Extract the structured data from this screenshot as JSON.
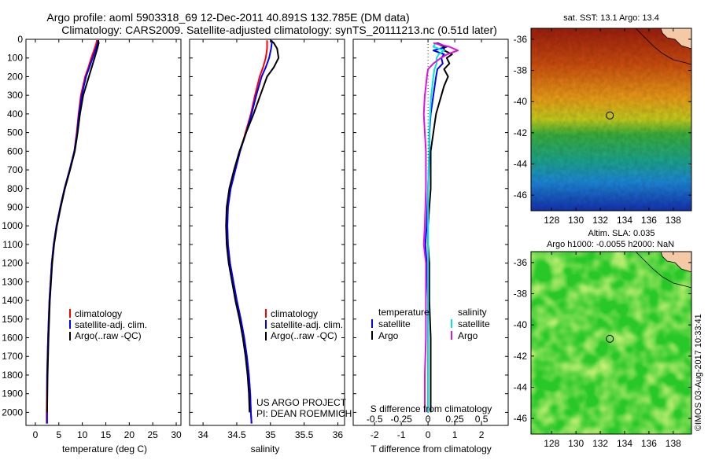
{
  "header": {
    "line1": "Argo profile: aoml 5903318_69 12-Dec-2011 40.891S 132.785E (DM data)",
    "line2": "Climatology: CARS2009. Satellite-adjusted climatology: synTS_20111213.nc (0.51d later)"
  },
  "depth_ticks": [
    "0",
    "100",
    "200",
    "300",
    "400",
    "500",
    "600",
    "700",
    "800",
    "900",
    "1000",
    "1100",
    "1200",
    "1300",
    "1400",
    "1500",
    "1600",
    "1700",
    "1800",
    "1900",
    "2000"
  ],
  "chart_data": [
    {
      "type": "line",
      "id": "temperature",
      "xlabel": "temperature (deg C)",
      "ylabel": "",
      "xlim": [
        -2,
        31
      ],
      "ylim": [
        2070,
        0
      ],
      "xticks": [
        "0",
        "5",
        "10",
        "15",
        "20",
        "25",
        "30"
      ],
      "xtick_values": [
        0,
        5,
        10,
        15,
        20,
        25,
        30
      ],
      "legend": [
        "climatology",
        "satellite-adj. clim.",
        "Argo(..raw -QC)"
      ],
      "series": [
        {
          "name": "climatology",
          "color": "#ff0000",
          "depth": [
            5,
            20,
            50,
            100,
            150,
            200,
            300,
            400,
            500,
            600,
            700,
            800,
            900,
            1000,
            1100,
            1200,
            1400,
            1600,
            1800,
            2000,
            2060
          ],
          "values": [
            13.1,
            13.0,
            12.6,
            11.9,
            11.3,
            10.6,
            9.7,
            9.2,
            8.8,
            8.3,
            7.3,
            6.2,
            5.3,
            4.5,
            3.9,
            3.5,
            3.0,
            2.7,
            2.5,
            2.4,
            2.4
          ]
        },
        {
          "name": "satellite-adj. clim.",
          "color": "#0000ff",
          "depth": [
            5,
            20,
            50,
            100,
            150,
            200,
            300,
            400,
            500,
            600,
            700,
            800,
            900,
            1000,
            1100,
            1200,
            1400,
            1600,
            1800,
            2000,
            2060
          ],
          "values": [
            13.4,
            13.3,
            12.9,
            12.2,
            11.5,
            10.8,
            9.9,
            9.3,
            8.9,
            8.3,
            7.3,
            6.2,
            5.3,
            4.5,
            3.9,
            3.5,
            3.0,
            2.7,
            2.5,
            2.5,
            2.5
          ]
        },
        {
          "name": "Argo(..raw -QC)",
          "color": "#000000",
          "depth": [
            5,
            20,
            50,
            100,
            150,
            200,
            300,
            400,
            500,
            600,
            700,
            800,
            900,
            1000,
            1100,
            1200,
            1400,
            1600,
            1800,
            2000
          ],
          "values": [
            13.4,
            13.5,
            13.2,
            12.6,
            12.0,
            11.4,
            10.2,
            9.5,
            9.0,
            8.4,
            7.4,
            6.3,
            5.4,
            4.6,
            4.0,
            3.6,
            3.1,
            2.8,
            2.6,
            2.5
          ]
        }
      ],
      "annotations": []
    },
    {
      "type": "line",
      "id": "salinity",
      "xlabel": "salinity",
      "ylabel": "",
      "xlim": [
        33.8,
        36.1
      ],
      "ylim": [
        2070,
        0
      ],
      "xticks": [
        "34",
        "34.5",
        "35",
        "35.5",
        "36"
      ],
      "xtick_values": [
        34,
        34.5,
        35,
        35.5,
        36
      ],
      "legend": [
        "climatology",
        "satellite-adj. clim.",
        "Argo(..raw -QC)"
      ],
      "series": [
        {
          "name": "climatology",
          "color": "#ff0000",
          "depth": [
            5,
            20,
            50,
            100,
            150,
            200,
            300,
            400,
            500,
            600,
            700,
            800,
            900,
            1000,
            1100,
            1200,
            1300,
            1400,
            1500,
            1600,
            1700,
            1800,
            1900,
            2000,
            2060
          ],
          "values": [
            34.95,
            34.95,
            34.95,
            34.93,
            34.89,
            34.84,
            34.77,
            34.71,
            34.63,
            34.55,
            34.48,
            34.41,
            34.37,
            34.36,
            34.37,
            34.4,
            34.45,
            34.5,
            34.56,
            34.61,
            34.65,
            34.68,
            34.7,
            34.71,
            34.72
          ]
        },
        {
          "name": "satellite-adj. clim.",
          "color": "#0000ff",
          "depth": [
            5,
            20,
            50,
            100,
            150,
            200,
            300,
            400,
            500,
            600,
            700,
            800,
            900,
            1000,
            1100,
            1200,
            1300,
            1400,
            1500,
            1600,
            1700,
            1800,
            1900,
            2000,
            2060
          ],
          "values": [
            35.02,
            35.02,
            35.01,
            34.98,
            34.93,
            34.87,
            34.79,
            34.72,
            34.64,
            34.55,
            34.48,
            34.41,
            34.37,
            34.36,
            34.37,
            34.4,
            34.45,
            34.5,
            34.56,
            34.61,
            34.65,
            34.68,
            34.7,
            34.71,
            34.72
          ]
        },
        {
          "name": "Argo(..raw -QC)",
          "color": "#000000",
          "depth": [
            5,
            20,
            50,
            100,
            150,
            200,
            300,
            400,
            500,
            600,
            700,
            800,
            900,
            1000,
            1100,
            1200,
            1300,
            1400,
            1500,
            1600,
            1700,
            1800,
            1900,
            2000
          ],
          "values": [
            35.0,
            35.05,
            35.1,
            35.12,
            35.05,
            34.95,
            34.85,
            34.75,
            34.64,
            34.54,
            34.46,
            34.39,
            34.35,
            34.34,
            34.35,
            34.38,
            34.43,
            34.48,
            34.54,
            34.59,
            34.63,
            34.66,
            34.68,
            34.69
          ]
        }
      ],
      "annotations": [
        "US ARGO PROJECT",
        "PI: DEAN ROEMMICH"
      ]
    },
    {
      "type": "line",
      "id": "difference",
      "xlabel": "T difference from climatology",
      "xlabel_top": "S difference from climatology",
      "xlim": [
        -2.8,
        3.0
      ],
      "ylim": [
        2070,
        0
      ],
      "xticks": [
        "-2",
        "-1",
        "0",
        "1",
        "2"
      ],
      "xtick_values": [
        -2,
        -1,
        0,
        1,
        2
      ],
      "sticks": [
        "-0.5",
        "-0.25",
        "0",
        "0.25",
        "0.5"
      ],
      "stick_values": [
        -0.5,
        -0.25,
        0,
        0.25,
        0.5
      ],
      "legend_left_title": "temperature",
      "legend_right_title": "salinity",
      "legend": [
        "satellite",
        "Argo",
        "satellite",
        "Argo"
      ],
      "series": [
        {
          "name": "T satellite",
          "color": "#0000ff",
          "depth": [
            20,
            40,
            60,
            80,
            100,
            130,
            160,
            200,
            250,
            300,
            400,
            500,
            600,
            800,
            1000,
            1100,
            1200,
            1400,
            1600,
            1800,
            2000
          ],
          "values": [
            0.35,
            0.7,
            0.2,
            0.6,
            0.5,
            0.55,
            0.35,
            0.3,
            0.25,
            0.2,
            0.1,
            0.05,
            0.05,
            0.0,
            -0.05,
            -0.1,
            -0.05,
            0.0,
            0.0,
            0.0,
            0.0
          ]
        },
        {
          "name": "T Argo",
          "color": "#000000",
          "depth": [
            20,
            40,
            60,
            80,
            100,
            130,
            160,
            200,
            250,
            300,
            400,
            500,
            600,
            800,
            1000,
            1100,
            1200,
            1400,
            1600,
            1800,
            2000
          ],
          "values": [
            0.3,
            0.6,
            0.6,
            0.9,
            0.7,
            0.8,
            0.6,
            0.75,
            0.6,
            0.5,
            0.3,
            0.2,
            0.1,
            0.1,
            0.0,
            0.0,
            0.05,
            0.05,
            0.1,
            0.1,
            0.1
          ]
        },
        {
          "name": "S satellite",
          "color": "#00e5e5",
          "depth": [
            20,
            40,
            60,
            80,
            100,
            130,
            160,
            200,
            250,
            300,
            400,
            500,
            600,
            800,
            1000,
            1100,
            1200,
            1400,
            1600,
            1800,
            2000
          ],
          "values": [
            0.07,
            0.05,
            0.15,
            0.1,
            0.08,
            0.08,
            0.06,
            0.05,
            0.04,
            0.03,
            0.02,
            0.01,
            0.01,
            0.0,
            0.0,
            0.0,
            0.0,
            0.0,
            0.0,
            0.0,
            0.0
          ]
        },
        {
          "name": "S Argo",
          "color": "#e010e0",
          "depth": [
            20,
            40,
            60,
            80,
            100,
            130,
            160,
            200,
            250,
            300,
            400,
            500,
            600,
            800,
            1000,
            1100,
            1200,
            1400,
            1600,
            1800,
            2000
          ],
          "values": [
            0.05,
            0.2,
            0.28,
            0.18,
            0.12,
            0.05,
            0.0,
            -0.01,
            -0.02,
            -0.03,
            -0.04,
            -0.03,
            -0.02,
            -0.02,
            -0.03,
            -0.04,
            -0.02,
            -0.02,
            -0.02,
            -0.03,
            -0.03
          ]
        }
      ],
      "annotations": []
    }
  ],
  "maps": {
    "sst": {
      "title": "sat. SST: 13.1  Argo: 13.4",
      "yticks": [
        "-36",
        "-38",
        "-40",
        "-42",
        "-44",
        "-46"
      ],
      "ytick_values": [
        -36,
        -38,
        -40,
        -42,
        -44,
        -46
      ],
      "xticks": [
        "128",
        "130",
        "132",
        "134",
        "136",
        "138"
      ],
      "xtick_values": [
        128,
        130,
        132,
        134,
        136,
        138
      ],
      "xlim": [
        126.3,
        139.5
      ],
      "ylim": [
        -47.0,
        -35.3
      ],
      "marker": [
        132.785,
        -40.891
      ]
    },
    "sla": {
      "title1": "Altim. SLA: 0.035",
      "title2": "Argo h1000: -0.0055 h2000: NaN",
      "yticks": [
        "-36",
        "-38",
        "-40",
        "-42",
        "-44",
        "-46"
      ],
      "ytick_values": [
        -36,
        -38,
        -40,
        -42,
        -44,
        -46
      ],
      "xticks": [
        "128",
        "130",
        "132",
        "134",
        "136",
        "138"
      ],
      "xtick_values": [
        128,
        130,
        132,
        134,
        136,
        138
      ],
      "xlim": [
        126.3,
        139.5
      ],
      "ylim": [
        -47.0,
        -35.3
      ],
      "marker": [
        132.785,
        -40.891
      ]
    }
  },
  "footer_stamp": "©IMOS 03-Aug-2017 10:33:41"
}
